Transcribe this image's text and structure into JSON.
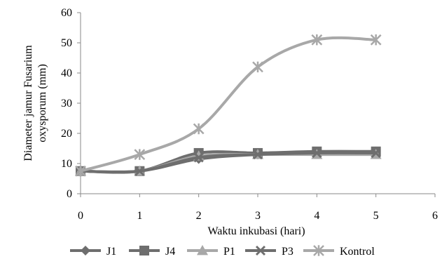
{
  "chart_data": {
    "type": "line",
    "smooth": true,
    "title": "",
    "xlabel": "Waktu inkubasi (hari)",
    "ylabel_lines": [
      "Diameter jamur Fusarium",
      "oxysporum (mm)"
    ],
    "x": [
      0,
      1,
      2,
      3,
      4,
      5
    ],
    "xlim": [
      0,
      6
    ],
    "ylim": [
      0,
      60
    ],
    "x_ticks": [
      "0",
      "1",
      "2",
      "3",
      "4",
      "5",
      "6"
    ],
    "y_ticks": [
      "0",
      "10",
      "20",
      "30",
      "40",
      "50",
      "60"
    ],
    "grid": false,
    "legend_position": "bottom",
    "series": [
      {
        "name": "J1",
        "marker": "diamond",
        "color": "#6e6e6e",
        "values": [
          7.5,
          7.5,
          11.5,
          13.0,
          13.5,
          14.0
        ]
      },
      {
        "name": "J4",
        "marker": "square",
        "color": "#6e6e6e",
        "values": [
          7.5,
          7.5,
          13.5,
          13.5,
          14.0,
          14.0
        ]
      },
      {
        "name": "P1",
        "marker": "triangle",
        "color": "#a8a8a8",
        "values": [
          7.5,
          7.5,
          12.5,
          13.0,
          13.0,
          13.0
        ]
      },
      {
        "name": "P3",
        "marker": "x",
        "color": "#6e6e6e",
        "values": [
          7.5,
          7.5,
          12.0,
          13.0,
          13.5,
          13.5
        ]
      },
      {
        "name": "Kontrol",
        "marker": "star",
        "color": "#a8a8a8",
        "values": [
          7.5,
          13.0,
          21.5,
          42.0,
          51.0,
          51.0
        ]
      }
    ]
  }
}
